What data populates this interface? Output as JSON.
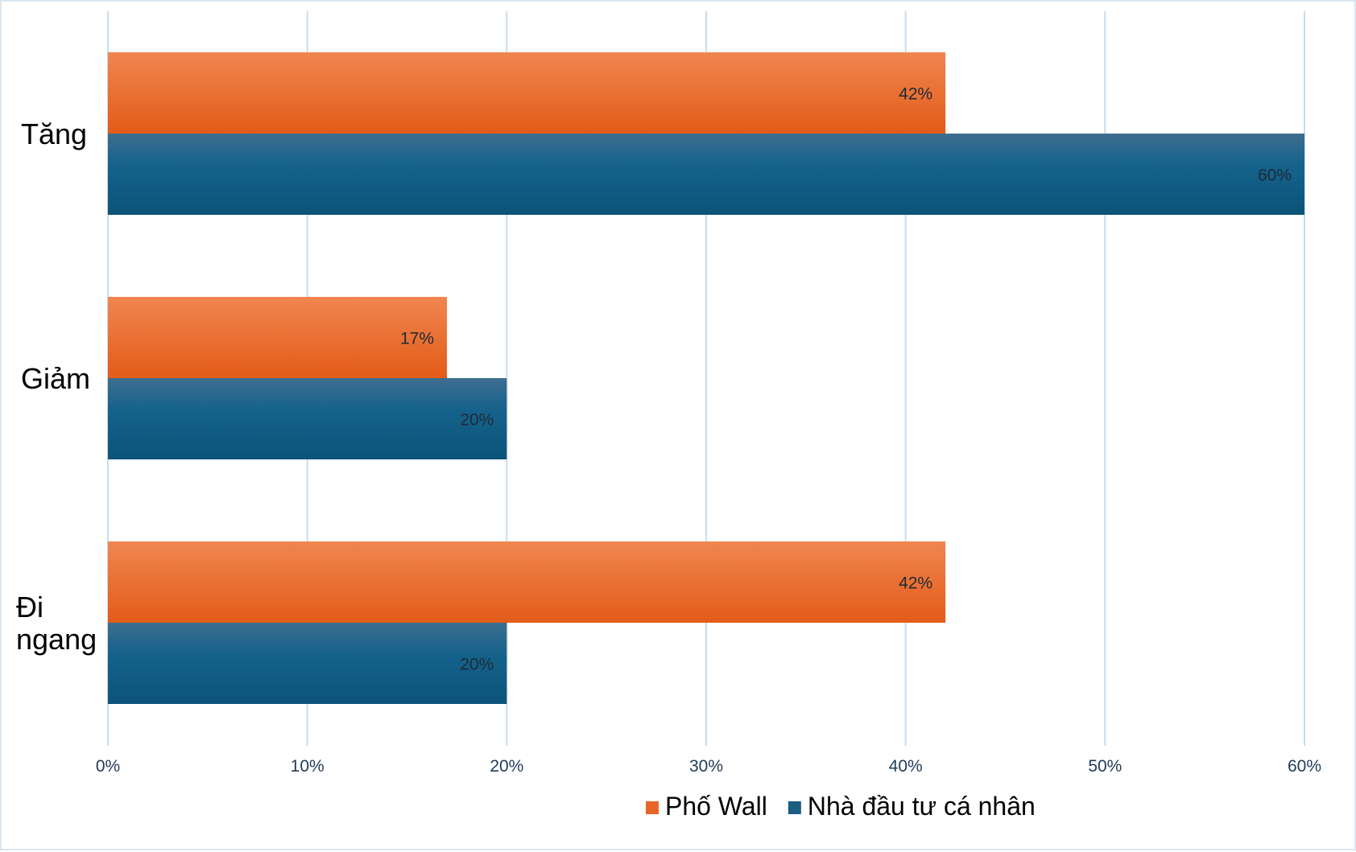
{
  "chart_data": {
    "type": "bar",
    "orientation": "horizontal",
    "categories": [
      [
        "Tăng"
      ],
      [
        "Giảm"
      ],
      [
        "Đi",
        "ngang"
      ]
    ],
    "series": [
      {
        "name": "Phố Wall",
        "values": [
          42,
          17,
          42
        ],
        "color": "#e8652a"
      },
      {
        "name": "Nhà đầu tư cá nhân",
        "values": [
          60,
          20,
          20
        ],
        "color": "#1c5d82"
      }
    ],
    "data_labels": [
      [
        "42%",
        "17%",
        "42%"
      ],
      [
        "60%",
        "20%",
        "20%"
      ]
    ],
    "xlim": [
      0,
      60
    ],
    "xticks": [
      "0%",
      "10%",
      "20%",
      "30%",
      "40%",
      "50%",
      "60%"
    ],
    "grid": true,
    "legend_position": "bottom",
    "title": "",
    "xlabel": "",
    "ylabel": ""
  },
  "colors": {
    "gridline": "#c9ddee",
    "tick_text": "#1f3a5a",
    "data_label_text": "#1f2b36",
    "frame_border": "#dbe6f1"
  }
}
